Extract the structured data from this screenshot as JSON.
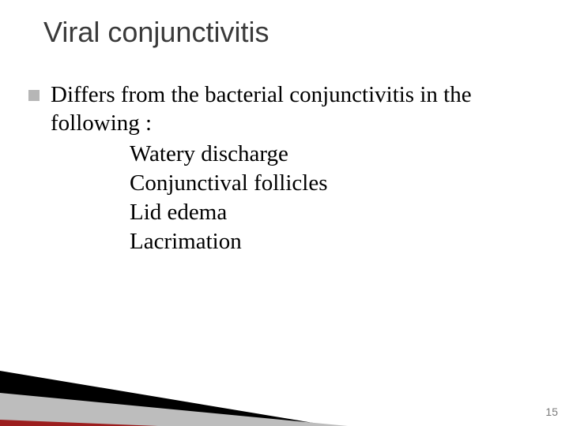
{
  "title": "Viral conjunctivitis",
  "lead": "Differs from the bacterial conjunctivitis in the following :",
  "subitems": [
    "Watery discharge",
    "Conjunctival follicles",
    "Lid edema",
    "Lacrimation"
  ],
  "page_number": "15",
  "colors": {
    "title": "#3a3a3a",
    "body_text": "#000000",
    "bullet": "#b6b6b6",
    "pagenum": "#7a7a7a",
    "wedge_dark": "#000000",
    "wedge_light": "#bdbdbd",
    "wedge_accent": "#9c1e1e",
    "background": "#ffffff"
  },
  "typography": {
    "title_font": "Verdana",
    "title_size_pt": 36,
    "body_font": "Times New Roman",
    "body_size_pt": 29,
    "pagenum_size_pt": 14
  }
}
